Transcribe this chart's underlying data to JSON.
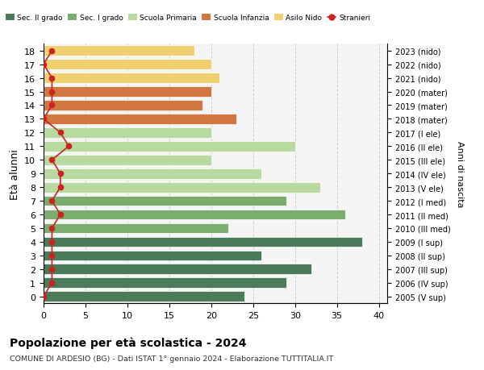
{
  "ages": [
    18,
    17,
    16,
    15,
    14,
    13,
    12,
    11,
    10,
    9,
    8,
    7,
    6,
    5,
    4,
    3,
    2,
    1,
    0
  ],
  "years": [
    "2005 (V sup)",
    "2006 (IV sup)",
    "2007 (III sup)",
    "2008 (II sup)",
    "2009 (I sup)",
    "2010 (III med)",
    "2011 (II med)",
    "2012 (I med)",
    "2013 (V ele)",
    "2014 (IV ele)",
    "2015 (III ele)",
    "2016 (II ele)",
    "2017 (I ele)",
    "2018 (mater)",
    "2019 (mater)",
    "2020 (mater)",
    "2021 (nido)",
    "2022 (nido)",
    "2023 (nido)"
  ],
  "bar_values": [
    24,
    29,
    32,
    26,
    38,
    22,
    36,
    29,
    33,
    26,
    20,
    30,
    20,
    23,
    19,
    20,
    21,
    20,
    18
  ],
  "stranieri": [
    0,
    1,
    1,
    1,
    1,
    1,
    2,
    1,
    2,
    2,
    1,
    3,
    2,
    0,
    1,
    1,
    1,
    0,
    1
  ],
  "bar_colors": [
    "#4a7c59",
    "#4a7c59",
    "#4a7c59",
    "#4a7c59",
    "#4a7c59",
    "#7aad6e",
    "#7aad6e",
    "#7aad6e",
    "#b8d9a0",
    "#b8d9a0",
    "#b8d9a0",
    "#b8d9a0",
    "#b8d9a0",
    "#d07840",
    "#d07840",
    "#d07840",
    "#f0d070",
    "#f0d070",
    "#f0d070"
  ],
  "legend_colors": [
    "#4a7c59",
    "#7aad6e",
    "#b8d9a0",
    "#d07840",
    "#f0d070",
    "#cc2222"
  ],
  "legend_labels": [
    "Sec. II grado",
    "Sec. I grado",
    "Scuola Primaria",
    "Scuola Infanzia",
    "Asilo Nido",
    "Stranieri"
  ],
  "stranieri_color": "#cc2222",
  "title": "Popolazione per età scolastica - 2024",
  "subtitle": "COMUNE DI ARDESIO (BG) - Dati ISTAT 1° gennaio 2024 - Elaborazione TUTTITALIA.IT",
  "ylabel_left": "Età alunni",
  "ylabel_right": "Anni di nascita",
  "xlim": [
    0,
    41
  ],
  "background_color": "#f5f5f5",
  "grid_color": "#cccccc"
}
